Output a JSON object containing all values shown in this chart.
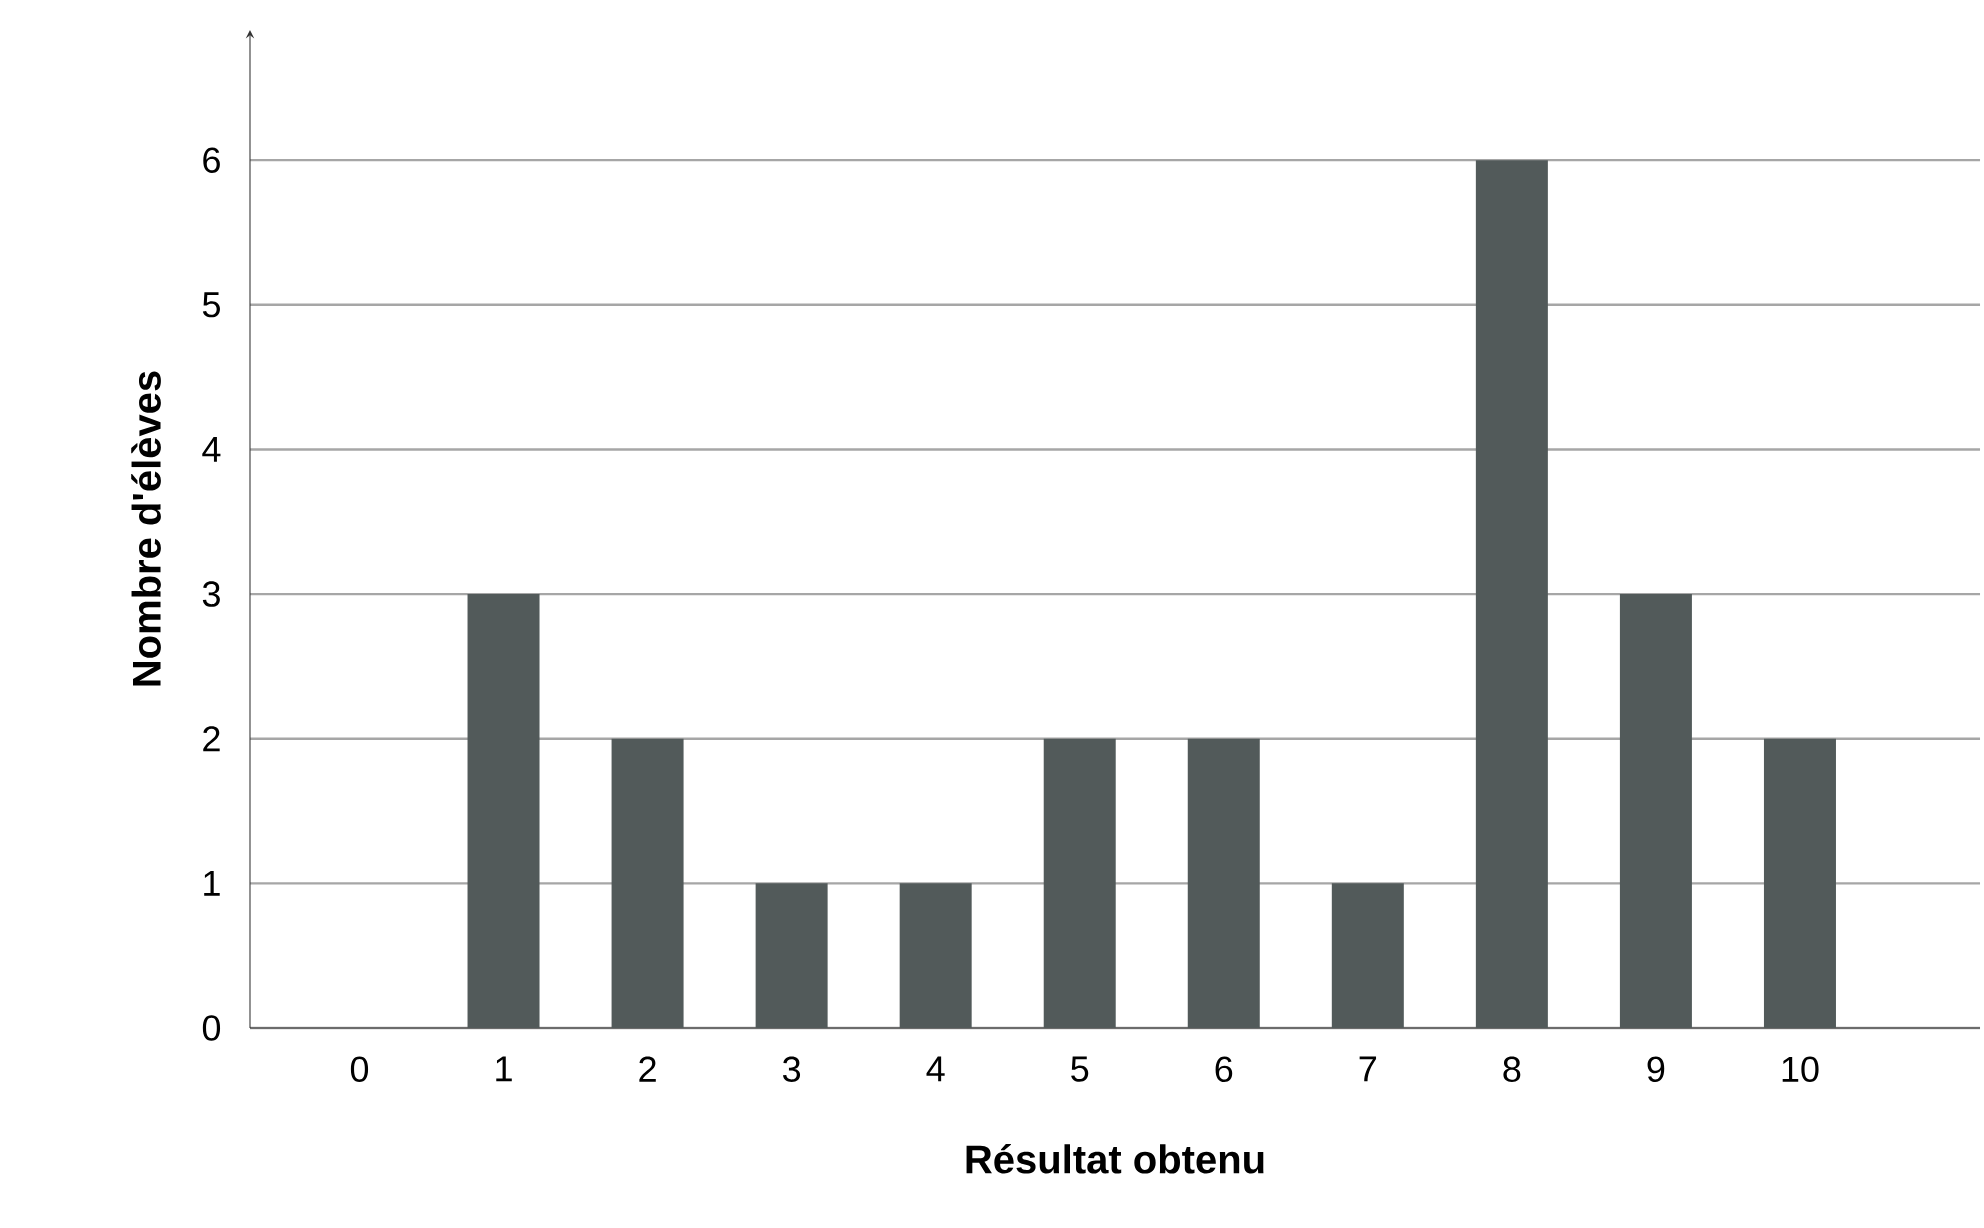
{
  "chart_data": {
    "type": "bar",
    "xlabel": "Résultat obtenu",
    "ylabel": "Nombre d'élèves",
    "categories": [
      "0",
      "1",
      "2",
      "3",
      "4",
      "5",
      "6",
      "7",
      "8",
      "9",
      "10"
    ],
    "values": [
      0,
      3,
      2,
      1,
      1,
      2,
      2,
      1,
      6,
      3,
      2
    ],
    "color": "#525a5a",
    "ylim": [
      0,
      6.9
    ],
    "yticks": [
      0,
      1,
      2,
      3,
      4,
      5,
      6
    ],
    "grid": "y"
  }
}
